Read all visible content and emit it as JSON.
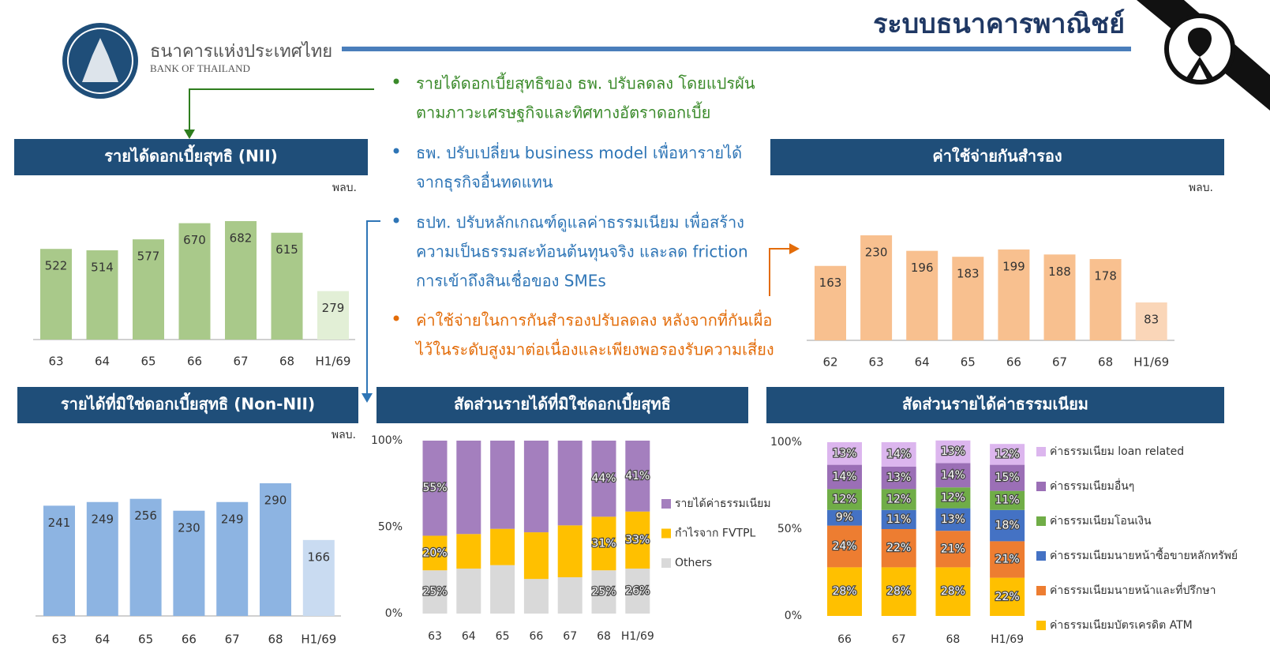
{
  "header": {
    "title": "ระบบธนาคารพาณิชย์",
    "logo_th": "ธนาคารแห่งประเทศไทย",
    "logo_en": "BANK OF THAILAND"
  },
  "bullets": [
    {
      "color": "#3a8a2a",
      "lines": [
        "รายได้ดอกเบี้ยสุทธิของ ธพ. ปรับลดลง โดยแปรผัน",
        "ตามภาวะเศรษฐกิจและทิศทางอัตราดอกเบี้ย"
      ]
    },
    {
      "color": "#2e75b6",
      "lines": [
        "ธพ. ปรับเปลี่ยน business model เพื่อหารายได้",
        "จากธุรกิจอื่นทดแทน"
      ]
    },
    {
      "color": "#2e75b6",
      "lines": [
        "ธปท. ปรับหลักเกณฑ์ดูแลค่าธรรมเนียม เพื่อสร้าง",
        "ความเป็นธรรมสะท้อนต้นทุนจริง และลด friction",
        "การเข้าถึงสินเชื่อของ SMEs"
      ]
    },
    {
      "color": "#e36c09",
      "lines": [
        "ค่าใช้จ่ายในการกันสำรองปรับลดลง หลังจากที่กันเผื่อ",
        "ไว้ในระดับสูงมาต่อเนื่องและเพียงพอรองรับความเสี่ยง"
      ]
    }
  ],
  "chart_data": [
    {
      "type": "bar",
      "title": "รายได้ดอกเบี้ยสุทธิ (NII)",
      "unit_label": "พลบ.",
      "categories": [
        "63",
        "64",
        "65",
        "66",
        "67",
        "68",
        "H1/69"
      ],
      "values": [
        522,
        514,
        577,
        670,
        682,
        615,
        279
      ],
      "colors": [
        "#a9c98a",
        "#a9c98a",
        "#a9c98a",
        "#a9c98a",
        "#a9c98a",
        "#a9c98a",
        "#e2efd6"
      ]
    },
    {
      "type": "bar",
      "title": "ค่าใช้จ่ายกันสำรอง",
      "unit_label": "พลบ.",
      "categories": [
        "62",
        "63",
        "64",
        "65",
        "66",
        "67",
        "68",
        "H1/69"
      ],
      "values": [
        163,
        230,
        196,
        183,
        199,
        188,
        178,
        83
      ],
      "colors": [
        "#f8c08f",
        "#f8c08f",
        "#f8c08f",
        "#f8c08f",
        "#f8c08f",
        "#f8c08f",
        "#f8c08f",
        "#fad6b8"
      ]
    },
    {
      "type": "bar",
      "title": "รายได้ที่มิใช่ดอกเบี้ยสุทธิ (Non-NII)",
      "unit_label": "พลบ.",
      "categories": [
        "63",
        "64",
        "65",
        "66",
        "67",
        "68",
        "H1/69"
      ],
      "values": [
        241,
        249,
        256,
        230,
        249,
        290,
        166
      ],
      "colors": [
        "#8db4e2",
        "#8db4e2",
        "#8db4e2",
        "#8db4e2",
        "#8db4e2",
        "#8db4e2",
        "#c9dbf1"
      ]
    },
    {
      "type": "stacked_bar",
      "title": "สัดส่วนรายได้ที่มิใช่ดอกเบี้ยสุทธิ",
      "categories": [
        "63",
        "64",
        "65",
        "66",
        "67",
        "68",
        "H1/69"
      ],
      "ylim": [
        0,
        100
      ],
      "yticks": [
        {
          "value": 0,
          "label": "0%"
        },
        {
          "value": 50,
          "label": "50%"
        },
        {
          "value": 100,
          "label": "100%"
        }
      ],
      "series": [
        {
          "name": "รายได้ค่าธรรมเนียม",
          "color": "#a47fbe",
          "values": [
            55,
            54,
            51,
            53,
            49,
            44,
            41
          ],
          "value_labels": [
            "55%",
            null,
            null,
            null,
            null,
            "44%",
            "41%"
          ]
        },
        {
          "name": "กำไรจาก FVTPL",
          "color": "#ffc000",
          "values": [
            20,
            20,
            21,
            27,
            30,
            31,
            33
          ],
          "value_labels": [
            "20%",
            null,
            null,
            null,
            null,
            "31%",
            "33%"
          ]
        },
        {
          "name": "Others",
          "color": "#d9d9d9",
          "values": [
            25,
            26,
            28,
            20,
            21,
            25,
            26
          ],
          "value_labels": [
            "25%",
            null,
            null,
            null,
            null,
            "25%",
            "26%"
          ]
        }
      ]
    },
    {
      "type": "stacked_bar",
      "title": "สัดส่วนรายได้ค่าธรรมเนียม",
      "categories": [
        "66",
        "67",
        "68",
        "H1/69"
      ],
      "ylim": [
        0,
        100
      ],
      "yticks": [
        {
          "value": 0,
          "label": "0%"
        },
        {
          "value": 50,
          "label": "50%"
        },
        {
          "value": 100,
          "label": "100%"
        }
      ],
      "series": [
        {
          "name": "ค่าธรรมเนียม loan related",
          "color": "#dcb6ee",
          "values": [
            13,
            14,
            13,
            12
          ],
          "value_labels": [
            "13%",
            "14%",
            "13%",
            "12%"
          ]
        },
        {
          "name": "ค่าธรรมเนียมอื่นๆ",
          "color": "#9b6fb6",
          "values": [
            14,
            13,
            14,
            15
          ],
          "value_labels": [
            "14%",
            "13%",
            "14%",
            "15%"
          ]
        },
        {
          "name": "ค่าธรรมเนียมโอนเงิน",
          "color": "#70ad47",
          "values": [
            12,
            12,
            12,
            11
          ],
          "value_labels": [
            "12%",
            "12%",
            "12%",
            "11%"
          ]
        },
        {
          "name": "ค่าธรรมเนียมนายหน้าซื้อขายหลักทรัพย์",
          "color": "#4472c4",
          "values": [
            9,
            11,
            13,
            18
          ],
          "value_labels": [
            "9%",
            "11%",
            "13%",
            "18%"
          ]
        },
        {
          "name": "ค่าธรรมเนียมนายหน้าและที่ปรึกษา",
          "color": "#ed7d31",
          "values": [
            24,
            22,
            21,
            21
          ],
          "value_labels": [
            "24%",
            "22%",
            "21%",
            "21%"
          ]
        },
        {
          "name": "ค่าธรรมเนียมบัตรเครดิต ATM",
          "color": "#ffc000",
          "values": [
            28,
            28,
            28,
            22
          ],
          "value_labels": [
            "28%",
            "28%",
            "28%",
            "22%"
          ]
        }
      ]
    }
  ]
}
